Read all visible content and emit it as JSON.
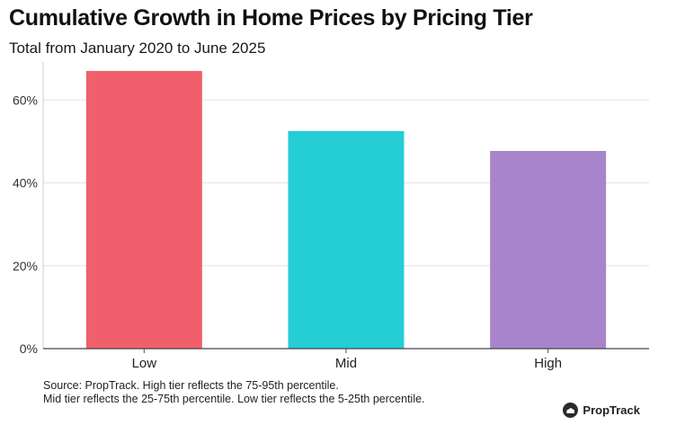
{
  "chart_data": {
    "type": "bar",
    "title": "Cumulative Growth in Home Prices by Pricing Tier",
    "subtitle": "Total from January 2020 to June 2025",
    "categories": [
      "Low",
      "Mid",
      "High"
    ],
    "values": [
      67,
      52.5,
      47.7
    ],
    "colors": [
      "#f25f6c",
      "#25cdd5",
      "#a884cb"
    ],
    "ylim": [
      0,
      67
    ],
    "yticks": [
      0,
      20,
      40,
      60
    ],
    "ytick_labels": [
      "0%",
      "20%",
      "40%",
      "60%"
    ],
    "xlabel": "",
    "ylabel": "",
    "grid": true
  },
  "footer": {
    "source_line1": "Source: PropTrack. High tier reflects the 75-95th percentile.",
    "source_line2": "Mid tier reflects the 25-75th percentile. Low tier reflects the 5-25th percentile.",
    "brand": "PropTrack"
  }
}
